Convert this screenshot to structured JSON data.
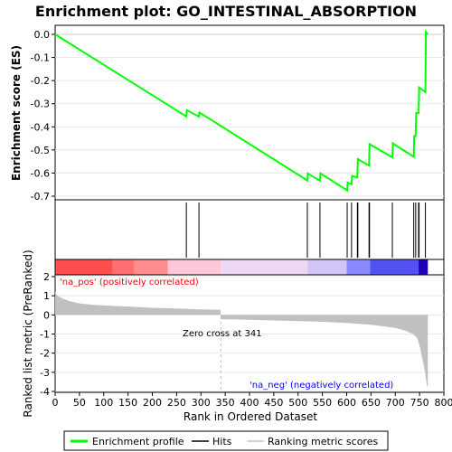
{
  "title": "Enrichment plot: GO_INTESTINAL_ABSORPTION",
  "colors": {
    "es_line": "#00ff00",
    "hits": "#000000",
    "metric_fill": "#c0c0c0",
    "pos_label": "#ff0000",
    "neg_label": "#0000ff",
    "zero_line": "#c0c0c0"
  },
  "legend": {
    "enrichment_profile": "Enrichment profile",
    "hits": "Hits",
    "ranking_metric": "Ranking metric scores"
  },
  "chart_data": [
    {
      "type": "line",
      "name": "enrichment-score-panel",
      "ylabel": "Enrichment score (ES)",
      "ylim": [
        -0.7,
        0.05
      ],
      "yticks": [
        "0.0",
        "-0.1",
        "-0.2",
        "-0.3",
        "-0.4",
        "-0.5",
        "-0.6",
        "-0.7"
      ],
      "series": [
        {
          "x": [
            0,
            270,
            271,
            296,
            297,
            519,
            520,
            545,
            546,
            601,
            602,
            610,
            611,
            622,
            623,
            646,
            647,
            694,
            695,
            738,
            739,
            742,
            743,
            748,
            749,
            762,
            763,
            767
          ],
          "y": [
            0.0,
            -0.355,
            -0.328,
            -0.356,
            -0.338,
            -0.632,
            -0.602,
            -0.633,
            -0.601,
            -0.675,
            -0.641,
            -0.648,
            -0.612,
            -0.62,
            -0.54,
            -0.568,
            -0.475,
            -0.532,
            -0.472,
            -0.53,
            -0.44,
            -0.44,
            -0.34,
            -0.34,
            -0.23,
            -0.25,
            0.01,
            0.0
          ]
        }
      ]
    },
    {
      "type": "bar",
      "name": "hits-panel",
      "hit_ranks": [
        270,
        296,
        519,
        545,
        601,
        610,
        622,
        623,
        646,
        647,
        694,
        738,
        742,
        748,
        749,
        762
      ]
    },
    {
      "type": "heatmap",
      "name": "rank-colorbar",
      "x_range": [
        0,
        767
      ],
      "segments": [
        {
          "x": [
            0,
            118
          ],
          "color": "#ff4e4e"
        },
        {
          "x": [
            118,
            163
          ],
          "color": "#ff6f6f"
        },
        {
          "x": [
            163,
            232
          ],
          "color": "#ff8c8c"
        },
        {
          "x": [
            232,
            341
          ],
          "color": "#ffc8d8"
        },
        {
          "x": [
            341,
            520
          ],
          "color": "#ecd8f4"
        },
        {
          "x": [
            520,
            600
          ],
          "color": "#d2c4f4"
        },
        {
          "x": [
            600,
            648
          ],
          "color": "#8a8aff"
        },
        {
          "x": [
            648,
            748
          ],
          "color": "#5252f2"
        },
        {
          "x": [
            748,
            767
          ],
          "color": "#2200bb"
        }
      ]
    },
    {
      "type": "area",
      "name": "ranked-metric-panel",
      "xlabel": "Rank in Ordered Dataset",
      "ylabel": "Ranked list metric (PreRanked)",
      "xlim": [
        0,
        800
      ],
      "ylim": [
        -4,
        2
      ],
      "xticks": [
        "0",
        "50",
        "100",
        "150",
        "200",
        "250",
        "300",
        "350",
        "400",
        "450",
        "500",
        "550",
        "600",
        "650",
        "700",
        "750",
        "800"
      ],
      "yticks": [
        "2",
        "1",
        "0",
        "-1",
        "-2",
        "-3",
        "-4"
      ],
      "x": [
        0,
        5,
        15,
        30,
        50,
        80,
        120,
        160,
        200,
        250,
        300,
        340,
        341,
        350,
        400,
        450,
        500,
        550,
        600,
        650,
        700,
        720,
        735,
        745,
        750,
        755,
        760,
        763,
        765,
        767
      ],
      "values": [
        1.2,
        1.0,
        0.85,
        0.72,
        0.6,
        0.52,
        0.47,
        0.42,
        0.37,
        0.33,
        0.29,
        0.26,
        -0.22,
        -0.23,
        -0.26,
        -0.29,
        -0.32,
        -0.36,
        -0.42,
        -0.52,
        -0.68,
        -0.82,
        -0.98,
        -1.2,
        -1.6,
        -2.2,
        -2.8,
        -3.3,
        -3.7,
        -3.8
      ],
      "annotations": {
        "zero_cross_label": "Zero cross at 341",
        "zero_cross_rank": 341,
        "pos_label": "'na_pos' (positively correlated)",
        "neg_label": "'na_neg' (negatively correlated)"
      }
    }
  ]
}
